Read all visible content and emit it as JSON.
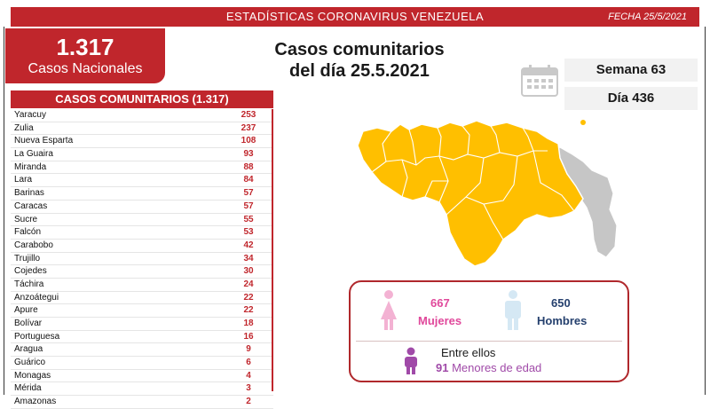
{
  "header": {
    "title": "ESTADÍSTICAS CORONAVIRUS VENEZUELA",
    "date": "FECHA 25/5/2021"
  },
  "national": {
    "count": "1.317",
    "label": "Casos Nacionales"
  },
  "main_title": {
    "line1": "Casos comunitarios",
    "line2": "del día 25.5.2021"
  },
  "calendar": {
    "icon": "calendar-icon",
    "week": "Semana 63",
    "day": "Día 436"
  },
  "table": {
    "header": "CASOS COMUNITARIOS (1.317)",
    "rows": [
      {
        "state": "Yaracuy",
        "cases": "253"
      },
      {
        "state": "Zulia",
        "cases": "237"
      },
      {
        "state": "Nueva Esparta",
        "cases": "108"
      },
      {
        "state": "La Guaira",
        "cases": "93"
      },
      {
        "state": "Miranda",
        "cases": "88"
      },
      {
        "state": "Lara",
        "cases": "84"
      },
      {
        "state": "Barinas",
        "cases": "57"
      },
      {
        "state": "Caracas",
        "cases": "57"
      },
      {
        "state": "Sucre",
        "cases": "55"
      },
      {
        "state": "Falcón",
        "cases": "53"
      },
      {
        "state": "Carabobo",
        "cases": "42"
      },
      {
        "state": "Trujillo",
        "cases": "34"
      },
      {
        "state": "Cojedes",
        "cases": "30"
      },
      {
        "state": "Táchira",
        "cases": "24"
      },
      {
        "state": "Anzoátegui",
        "cases": "22"
      },
      {
        "state": "Apure",
        "cases": "22"
      },
      {
        "state": "Bolívar",
        "cases": "18"
      },
      {
        "state": "Portuguesa",
        "cases": "16"
      },
      {
        "state": "Aragua",
        "cases": "9"
      },
      {
        "state": "Guárico",
        "cases": "6"
      },
      {
        "state": "Monagas",
        "cases": "4"
      },
      {
        "state": "Mérida",
        "cases": "3"
      },
      {
        "state": "Amazonas",
        "cases": "2"
      }
    ]
  },
  "colors": {
    "accent_red": "#c0262c",
    "map_yellow": "#ffbf00",
    "map_gray": "#c6c6c6",
    "women_pink": "#e0489b",
    "men_blue": "#25406e",
    "minors_purple": "#a04aa8"
  },
  "gender": {
    "women_count": "667",
    "women_label": "Mujeres",
    "men_count": "650",
    "men_label": "Hombres",
    "among_label": "Entre ellos",
    "minors_count": "91",
    "minors_label": "Menores de edad"
  }
}
